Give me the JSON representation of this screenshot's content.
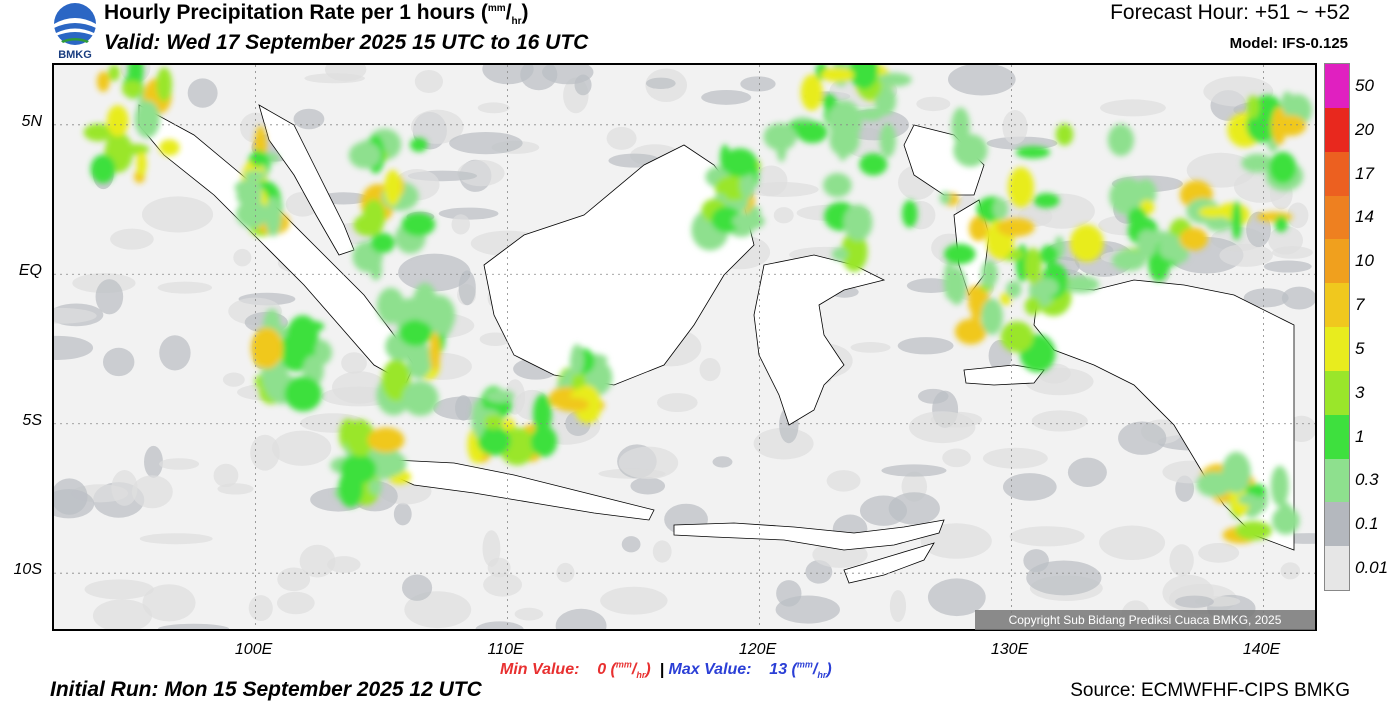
{
  "header": {
    "title_main": "Hourly Precipitation Rate per 1 hours (",
    "title_units_num": "mm",
    "title_units_den": "hr",
    "title_close": ")",
    "valid": "Valid: Wed 17 September 2025 15 UTC to 16 UTC",
    "forecast_hour": "Forecast Hour: +51 ~ +52",
    "model": "Model: IFS-0.125",
    "logo_text": "BMKG"
  },
  "axes": {
    "lat_ticks": [
      {
        "label": "5N",
        "lat": 5
      },
      {
        "label": "EQ",
        "lat": 0
      },
      {
        "label": "5S",
        "lat": -5
      },
      {
        "label": "10S",
        "lat": -10
      }
    ],
    "lon_ticks": [
      {
        "label": "100E",
        "lon": 100
      },
      {
        "label": "110E",
        "lon": 110
      },
      {
        "label": "120E",
        "lon": 120
      },
      {
        "label": "130E",
        "lon": 130
      },
      {
        "label": "140E",
        "lon": 140
      }
    ],
    "lon_range": [
      92,
      142.2
    ],
    "lat_range": [
      -12,
      7
    ]
  },
  "stats": {
    "min_label": "Min Value:",
    "min_value": "0",
    "max_label": "Max Value:",
    "max_value": "13",
    "separator": "|",
    "units_num": "mm",
    "units_den": "hr"
  },
  "footer": {
    "initial_run": "Initial Run: Mon 15 September 2025 12 UTC",
    "source": "Source: ECMWFHF-CIPS BMKG",
    "copyright": "Copyright Sub Bidang Prediksi Cuaca BMKG, 2025"
  },
  "legend": {
    "labels": [
      "0.01",
      "0.1",
      "0.3",
      "1",
      "3",
      "5",
      "7",
      "10",
      "14",
      "17",
      "20",
      "50"
    ],
    "colors": [
      "#e6e6e6",
      "#b4b8be",
      "#8ee08e",
      "#3ee03e",
      "#9ae62a",
      "#e8ec1e",
      "#f0c81e",
      "#f0a01e",
      "#ee8020",
      "#ec6020",
      "#e8281e",
      "#e020c0"
    ]
  },
  "colors": {
    "land": "#ffffff",
    "sea_bg": "#f2f2f2",
    "coast": "#000000"
  }
}
